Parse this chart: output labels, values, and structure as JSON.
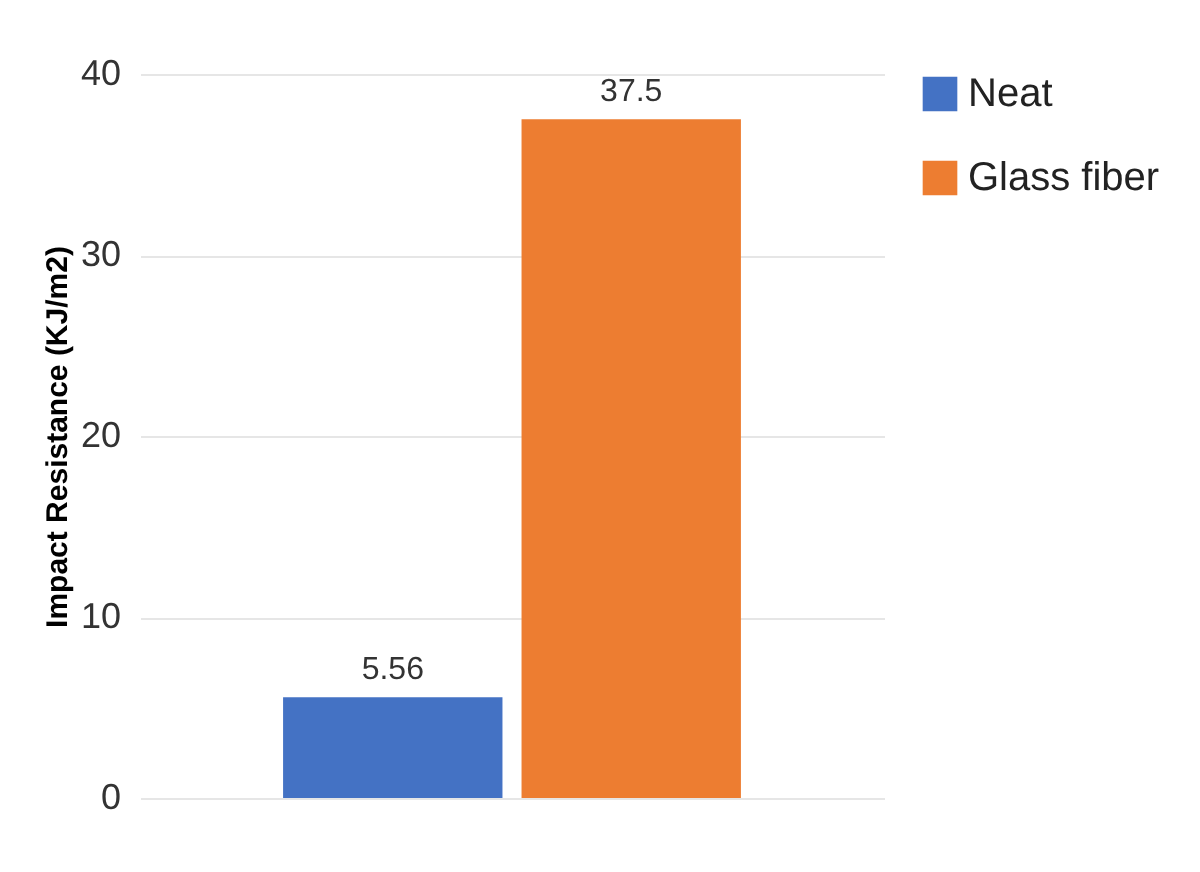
{
  "chart_data": {
    "type": "bar",
    "ylabel": "Impact Resistance (KJ/m2)",
    "categories": [
      null
    ],
    "series": [
      {
        "name": "Neat",
        "color": "#4472c4",
        "values": [
          5.56
        ]
      },
      {
        "name": "Glass fiber",
        "color": "#ed7d31",
        "values": [
          37.5
        ]
      }
    ],
    "ylim": [
      0,
      40
    ],
    "yticks": [
      0,
      10,
      20,
      30,
      40
    ],
    "grid": "y",
    "legend": "right",
    "data_labels": true
  }
}
